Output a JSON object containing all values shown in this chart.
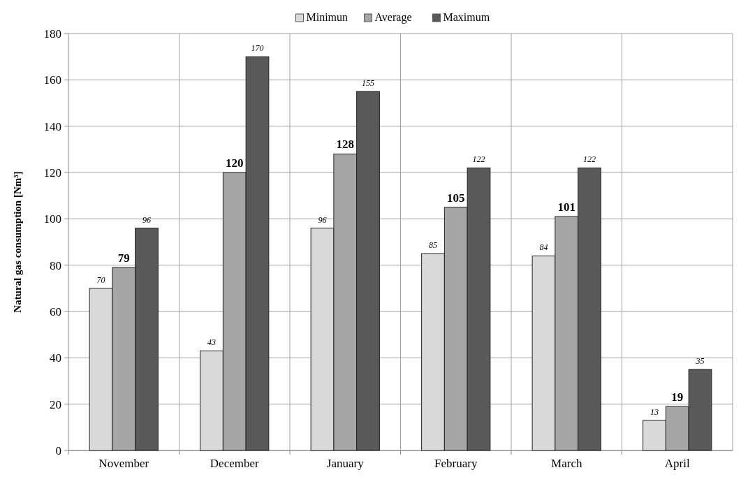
{
  "chart_data": {
    "type": "bar",
    "ylabel": "Natural gas consumption [Nm³]",
    "categories": [
      "November",
      "December",
      "January",
      "February",
      "March",
      "April"
    ],
    "series": [
      {
        "name": "Minimun",
        "color": "#d9d9d9",
        "values": [
          70,
          43,
          96,
          85,
          84,
          13
        ]
      },
      {
        "name": "Average",
        "color": "#a6a6a6",
        "values": [
          79,
          120,
          128,
          105,
          101,
          19
        ]
      },
      {
        "name": "Maximum",
        "color": "#595959",
        "values": [
          96,
          170,
          155,
          122,
          122,
          35
        ]
      }
    ],
    "ylim": [
      0,
      180
    ],
    "yticks": [
      0,
      20,
      40,
      60,
      80,
      100,
      120,
      140,
      160,
      180
    ],
    "grid": true,
    "legend": "top",
    "data_labels": true
  }
}
